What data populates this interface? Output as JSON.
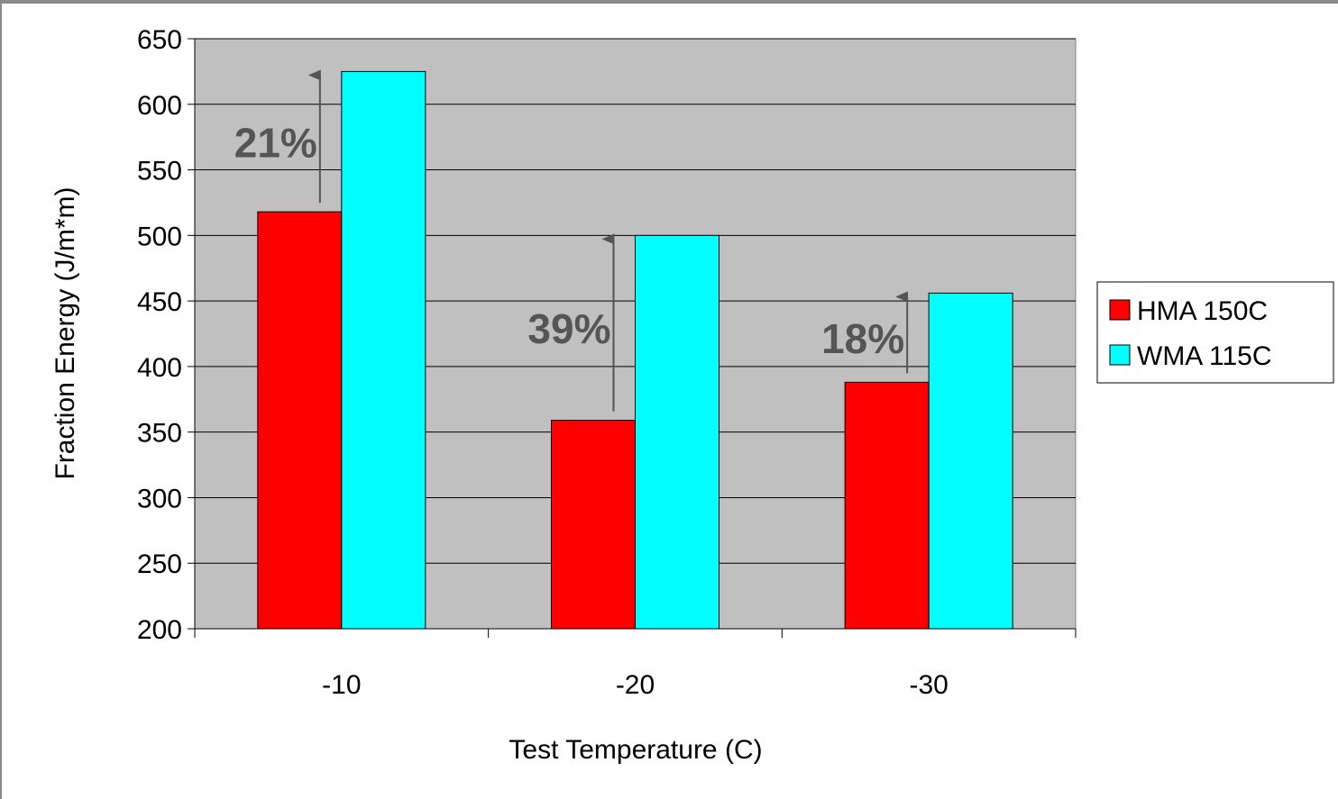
{
  "chart_data": {
    "type": "bar",
    "title": "",
    "xlabel": "Test Temperature (C)",
    "ylabel": "Fraction Energy (J/m*m)",
    "categories": [
      "-10",
      "-20",
      "-30"
    ],
    "series": [
      {
        "name": "HMA 150C",
        "color": "#ff0000",
        "values": [
          518,
          359,
          388
        ]
      },
      {
        "name": "WMA 115C",
        "color": "#00ffff",
        "values": [
          625,
          500,
          456
        ]
      }
    ],
    "ylim": [
      200,
      650
    ],
    "yticks": [
      "200",
      "250",
      "300",
      "350",
      "400",
      "450",
      "500",
      "550",
      "600",
      "650"
    ],
    "grid": true,
    "plot_background": "#c0c0c0",
    "legend_position": "right",
    "annotations": [
      {
        "text": "21%",
        "category": "-10"
      },
      {
        "text": "39%",
        "category": "-20"
      },
      {
        "text": "18%",
        "category": "-30"
      }
    ]
  }
}
